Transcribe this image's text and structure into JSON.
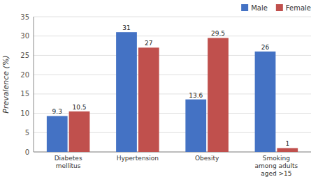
{
  "chart_data": {
    "type": "bar",
    "categories": [
      "Diabetes\nmellitus",
      "Hypertension",
      "Obesity",
      "Smoking\namong adults\naged >15"
    ],
    "series": [
      {
        "name": "Male",
        "color": "#4472C4",
        "values": [
          9.3,
          31,
          13.6,
          26
        ]
      },
      {
        "name": "Female",
        "color": "#C0504D",
        "values": [
          10.5,
          27,
          29.5,
          1
        ]
      }
    ],
    "ylabel": "Prevalence (%)",
    "ylim": [
      0,
      35
    ],
    "yticks": [
      0,
      5,
      10,
      15,
      20,
      25,
      30,
      35
    ],
    "grid": true,
    "legend": "upper right",
    "data_labels": true
  }
}
